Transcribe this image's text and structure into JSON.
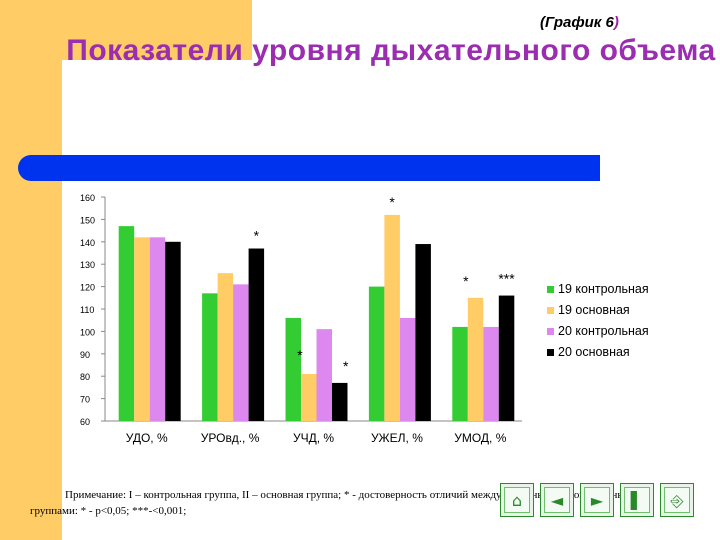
{
  "slide": {
    "caption_text": "(График 6",
    "caption_paren": ")",
    "title": "Показатели уровня дыхательного объема",
    "note": "Примечание: I – контрольная группа, II – основная группа; * - достоверность отличий между основными и контрольными группами: * - p<0,05; ***-<0,001;"
  },
  "nav_buttons": [
    {
      "icon": "home-icon",
      "glyph": "⌂"
    },
    {
      "icon": "arrow-left-icon",
      "glyph": "◄"
    },
    {
      "icon": "arrow-right-icon",
      "glyph": "►"
    },
    {
      "icon": "end-icon",
      "glyph": "▌"
    },
    {
      "icon": "exit-icon",
      "glyph": "⎆"
    }
  ],
  "chart_data": {
    "type": "bar",
    "categories": [
      "УДО, %",
      "УРОвд., %",
      "УЧД, %",
      "УЖЕЛ, %",
      "УМОД, %"
    ],
    "series": [
      {
        "name": "19 контрольная",
        "color": "#33cc33",
        "values": [
          147,
          117,
          106,
          120,
          102
        ]
      },
      {
        "name": "19 основная",
        "color": "#ffcc66",
        "values": [
          142,
          126,
          81,
          152,
          115
        ]
      },
      {
        "name": "20 контрольная",
        "color": "#dd88ee",
        "values": [
          142,
          121,
          101,
          106,
          102
        ]
      },
      {
        "name": "20 основная",
        "color": "#000000",
        "values": [
          140,
          137,
          77,
          139,
          116
        ]
      }
    ],
    "ylim": [
      60,
      160
    ],
    "yticks": [
      60,
      70,
      80,
      90,
      100,
      110,
      120,
      130,
      140,
      150,
      160
    ],
    "grid": false,
    "legend": "right",
    "annotations": [
      {
        "category": 1,
        "series": 3,
        "text": "*"
      },
      {
        "category": 2,
        "series": 1,
        "text": "*"
      },
      {
        "category": 2,
        "series": 3,
        "text": "*"
      },
      {
        "category": 3,
        "series": 1,
        "text": "*"
      },
      {
        "category": 4,
        "series": 1,
        "text": "*"
      },
      {
        "category": 4,
        "series": 3,
        "text": "***"
      }
    ]
  }
}
